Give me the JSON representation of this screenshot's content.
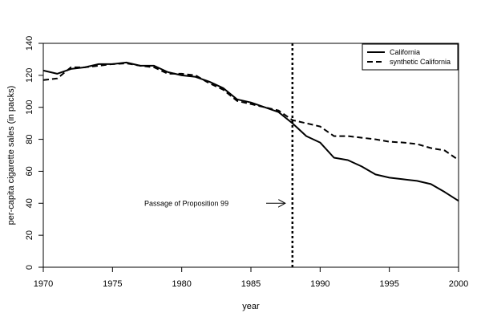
{
  "chart_data": {
    "type": "line",
    "title": "",
    "xlabel": "year",
    "ylabel": "per-capita cigarette sales (in packs)",
    "xlim": [
      1970,
      2000
    ],
    "ylim": [
      0,
      140
    ],
    "xticks": [
      1970,
      1975,
      1980,
      1985,
      1990,
      1995,
      2000
    ],
    "yticks": [
      0,
      20,
      40,
      60,
      80,
      100,
      120,
      140
    ],
    "x": [
      1970,
      1971,
      1972,
      1973,
      1974,
      1975,
      1976,
      1977,
      1978,
      1979,
      1980,
      1981,
      1982,
      1983,
      1984,
      1985,
      1986,
      1987,
      1988,
      1989,
      1990,
      1991,
      1992,
      1993,
      1994,
      1995,
      1996,
      1997,
      1998,
      1999,
      2000
    ],
    "series": [
      {
        "name": "California",
        "style": "solid",
        "color": "#000000",
        "values": [
          123,
          121,
          124,
          125,
          127,
          127,
          128,
          126,
          126,
          122,
          120,
          119,
          116,
          112,
          105,
          103,
          100,
          97,
          90,
          82,
          78,
          68.5,
          67,
          63,
          58,
          56,
          55,
          54,
          52,
          47,
          41.5
        ]
      },
      {
        "name": "synthetic California",
        "style": "dashed",
        "color": "#000000",
        "values": [
          117,
          118,
          125,
          125,
          126,
          127,
          127.5,
          126,
          125,
          121,
          121,
          120,
          115,
          111,
          104,
          102,
          100,
          98,
          92,
          90,
          88,
          82,
          82,
          81,
          80,
          78.5,
          78,
          77,
          74.5,
          73,
          67
        ]
      }
    ],
    "reference_line": {
      "x": 1988,
      "style": "dotted"
    },
    "annotations": [
      {
        "text": "Passage of Proposition 99",
        "arrow_to": {
          "x": 1988,
          "y": 40
        }
      }
    ],
    "legend_position": "top-right",
    "grid": false
  }
}
